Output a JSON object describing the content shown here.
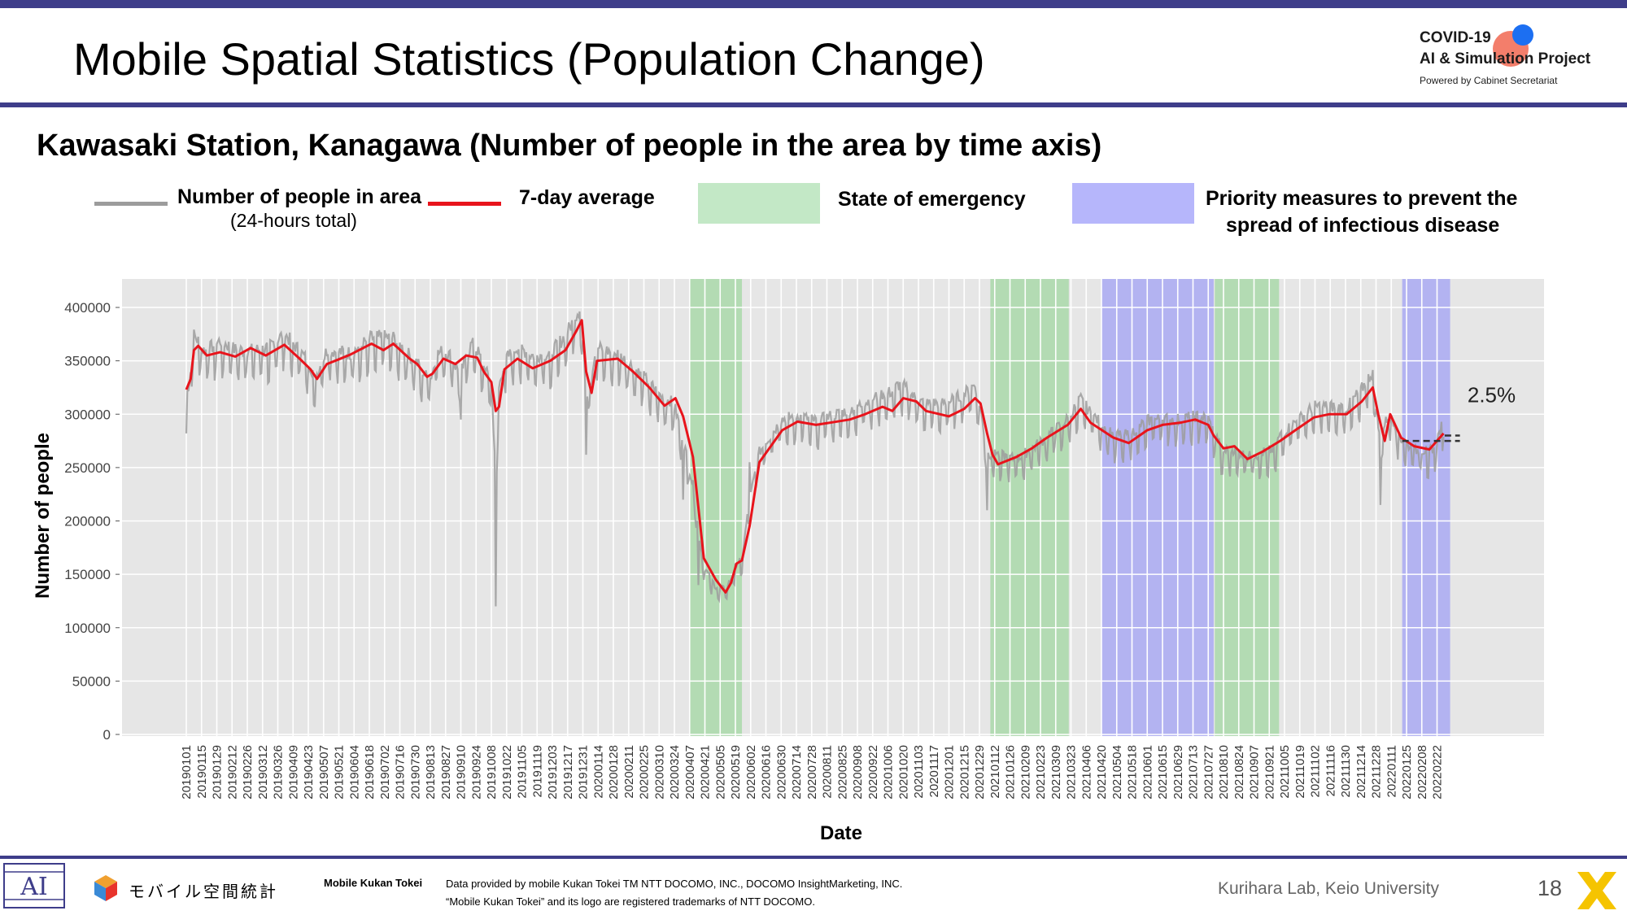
{
  "header": {
    "title": "Mobile Spatial Statistics (Population Change)",
    "logo": {
      "line1": "COVID-19",
      "line2": "AI & Simulation Project",
      "line3": "Powered by Cabinet Secretariat"
    }
  },
  "colors": {
    "band": "#3e3d8a",
    "raw_series": "#9c9c9c",
    "avg_series": "#e8141c",
    "emergency": "#a9d8a9",
    "priority": "#a9a9f2",
    "plot_background": "#e6e6e6"
  },
  "legend": {
    "raw_label": "Number of people in area",
    "raw_sublabel": "(24-hours total)",
    "avg_label": "7-day average",
    "emergency_label": "State of emergency",
    "priority_label_line1": "Priority measures to prevent the",
    "priority_label_line2": "spread of infectious disease"
  },
  "chart_data": {
    "type": "line",
    "title": "Kawasaki Station, Kanagawa (Number of people in the area by time axis)",
    "xlabel": "Date",
    "ylabel": "Number of people",
    "ylim": [
      0,
      420000
    ],
    "yticks": [
      "0",
      "50000",
      "100000",
      "150000",
      "200000",
      "250000",
      "300000",
      "350000",
      "400000"
    ],
    "x_tick_labels": [
      "20190101",
      "20190115",
      "20190129",
      "20190212",
      "20190226",
      "20190312",
      "20190326",
      "20190409",
      "20190423",
      "20190507",
      "20190521",
      "20190604",
      "20190618",
      "20190702",
      "20190716",
      "20190730",
      "20190813",
      "20190827",
      "20190910",
      "20190924",
      "20191008",
      "20191022",
      "20191105",
      "20191119",
      "20191203",
      "20191217",
      "20191231",
      "20200114",
      "20200128",
      "20200211",
      "20200225",
      "20200310",
      "20200324",
      "20200407",
      "20200421",
      "20200505",
      "20200519",
      "20200602",
      "20200616",
      "20200630",
      "20200714",
      "20200728",
      "20200811",
      "20200825",
      "20200908",
      "20200922",
      "20201006",
      "20201020",
      "20201103",
      "20201117",
      "20201201",
      "20201215",
      "20201229",
      "20210112",
      "20210126",
      "20210209",
      "20210223",
      "20210309",
      "20210323",
      "20210406",
      "20210420",
      "20210504",
      "20210518",
      "20210601",
      "20210615",
      "20210629",
      "20210713",
      "20210727",
      "20210810",
      "20210824",
      "20210907",
      "20210921",
      "20211005",
      "20211019",
      "20211102",
      "20211116",
      "20211130",
      "20211214",
      "20211228",
      "20220111",
      "20220125",
      "20220208",
      "20220222"
    ],
    "grid": true,
    "series": [
      {
        "name": "Number of people in area",
        "style": "raw-daily",
        "anchors": [
          [
            "20190101",
            282000
          ],
          [
            "20190104",
            320000
          ],
          [
            "20190108",
            380000
          ],
          [
            "20190115",
            340000
          ],
          [
            "20190201",
            370000
          ],
          [
            "20190301",
            335000
          ],
          [
            "20190401",
            375000
          ],
          [
            "20190420",
            345000
          ],
          [
            "20190429",
            320000
          ],
          [
            "20190510",
            365000
          ],
          [
            "20190601",
            340000
          ],
          [
            "20190701",
            375000
          ],
          [
            "20190801",
            330000
          ],
          [
            "20190813",
            310000
          ],
          [
            "20190820",
            360000
          ],
          [
            "20190901",
            345000
          ],
          [
            "20190910",
            295000
          ],
          [
            "20190920",
            370000
          ],
          [
            "20191008",
            310000
          ],
          [
            "20191012",
            120000
          ],
          [
            "20191015",
            340000
          ],
          [
            "20191101",
            365000
          ],
          [
            "20191201",
            350000
          ],
          [
            "20191220",
            390000
          ],
          [
            "20191228",
            408000
          ],
          [
            "20200103",
            262000
          ],
          [
            "20200110",
            370000
          ],
          [
            "20200201",
            345000
          ],
          [
            "20200301",
            320000
          ],
          [
            "20200320",
            300000
          ],
          [
            "20200401",
            220000
          ],
          [
            "20200415",
            140000
          ],
          [
            "20200501",
            118000
          ],
          [
            "20200515",
            145000
          ],
          [
            "20200525",
            160000
          ],
          [
            "20200601",
            255000
          ],
          [
            "20200701",
            300000
          ],
          [
            "20200801",
            285000
          ],
          [
            "20200901",
            305000
          ],
          [
            "20201001",
            325000
          ],
          [
            "20201015",
            345000
          ],
          [
            "20201101",
            300000
          ],
          [
            "20201201",
            320000
          ],
          [
            "20201225",
            335000
          ],
          [
            "20210105",
            210000
          ],
          [
            "20210112",
            270000
          ],
          [
            "20210201",
            240000
          ],
          [
            "20210301",
            265000
          ],
          [
            "20210320",
            290000
          ],
          [
            "20210401",
            315000
          ],
          [
            "20210501",
            270000
          ],
          [
            "20210601",
            295000
          ],
          [
            "20210701",
            285000
          ],
          [
            "20210727",
            290000
          ],
          [
            "20210810",
            245000
          ],
          [
            "20210901",
            250000
          ],
          [
            "20210925",
            245000
          ],
          [
            "20211001",
            275000
          ],
          [
            "20211101",
            310000
          ],
          [
            "20211201",
            300000
          ],
          [
            "20211225",
            350000
          ],
          [
            "20220101",
            215000
          ],
          [
            "20220105",
            305000
          ],
          [
            "20220120",
            260000
          ],
          [
            "20220201",
            245000
          ],
          [
            "20220220",
            250000
          ],
          [
            "20220228",
            300000
          ]
        ]
      },
      {
        "name": "7-day average",
        "style": "smoothed",
        "points": [
          [
            "20190101",
            323000
          ],
          [
            "20190105",
            333000
          ],
          [
            "20190108",
            360000
          ],
          [
            "20190112",
            364000
          ],
          [
            "20190120",
            355000
          ],
          [
            "20190201",
            358000
          ],
          [
            "20190215",
            354000
          ],
          [
            "20190301",
            362000
          ],
          [
            "20190315",
            355000
          ],
          [
            "20190401",
            365000
          ],
          [
            "20190415",
            352000
          ],
          [
            "20190425",
            342000
          ],
          [
            "20190501",
            333000
          ],
          [
            "20190510",
            347000
          ],
          [
            "20190520",
            351000
          ],
          [
            "20190601",
            356000
          ],
          [
            "20190620",
            366000
          ],
          [
            "20190701",
            360000
          ],
          [
            "20190710",
            366000
          ],
          [
            "20190725",
            352000
          ],
          [
            "20190801",
            347000
          ],
          [
            "20190810",
            335000
          ],
          [
            "20190815",
            338000
          ],
          [
            "20190825",
            352000
          ],
          [
            "20190905",
            347000
          ],
          [
            "20190915",
            355000
          ],
          [
            "20190925",
            353000
          ],
          [
            "20191001",
            340000
          ],
          [
            "20191008",
            330000
          ],
          [
            "20191012",
            303000
          ],
          [
            "20191015",
            307000
          ],
          [
            "20191020",
            342000
          ],
          [
            "20191101",
            352000
          ],
          [
            "20191115",
            343000
          ],
          [
            "20191201",
            350000
          ],
          [
            "20191215",
            360000
          ],
          [
            "20191225",
            378000
          ],
          [
            "20191230",
            388000
          ],
          [
            "20200103",
            340000
          ],
          [
            "20200108",
            320000
          ],
          [
            "20200113",
            350000
          ],
          [
            "20200201",
            352000
          ],
          [
            "20200215",
            340000
          ],
          [
            "20200301",
            325000
          ],
          [
            "20200315",
            308000
          ],
          [
            "20200325",
            315000
          ],
          [
            "20200401",
            298000
          ],
          [
            "20200410",
            260000
          ],
          [
            "20200420",
            165000
          ],
          [
            "20200501",
            145000
          ],
          [
            "20200510",
            133000
          ],
          [
            "20200515",
            142000
          ],
          [
            "20200520",
            160000
          ],
          [
            "20200525",
            163000
          ],
          [
            "20200601",
            195000
          ],
          [
            "20200610",
            255000
          ],
          [
            "20200701",
            285000
          ],
          [
            "20200715",
            293000
          ],
          [
            "20200801",
            290000
          ],
          [
            "20200901",
            295000
          ],
          [
            "20200915",
            300000
          ],
          [
            "20201001",
            307000
          ],
          [
            "20201010",
            303000
          ],
          [
            "20201020",
            315000
          ],
          [
            "20201101",
            312000
          ],
          [
            "20201110",
            303000
          ],
          [
            "20201201",
            298000
          ],
          [
            "20201215",
            305000
          ],
          [
            "20201225",
            315000
          ],
          [
            "20201230",
            310000
          ],
          [
            "20210105",
            282000
          ],
          [
            "20210110",
            262000
          ],
          [
            "20210115",
            253000
          ],
          [
            "20210201",
            260000
          ],
          [
            "20210215",
            268000
          ],
          [
            "20210301",
            278000
          ],
          [
            "20210320",
            290000
          ],
          [
            "20210401",
            305000
          ],
          [
            "20210410",
            292000
          ],
          [
            "20210501",
            278000
          ],
          [
            "20210515",
            273000
          ],
          [
            "20210601",
            285000
          ],
          [
            "20210615",
            290000
          ],
          [
            "20210701",
            292000
          ],
          [
            "20210715",
            295000
          ],
          [
            "20210727",
            290000
          ],
          [
            "20210801",
            280000
          ],
          [
            "20210810",
            268000
          ],
          [
            "20210820",
            270000
          ],
          [
            "20210901",
            258000
          ],
          [
            "20210915",
            265000
          ],
          [
            "20211001",
            275000
          ],
          [
            "20211015",
            285000
          ],
          [
            "20211101",
            297000
          ],
          [
            "20211115",
            300000
          ],
          [
            "20211201",
            300000
          ],
          [
            "20211215",
            312000
          ],
          [
            "20211225",
            325000
          ],
          [
            "20211230",
            300000
          ],
          [
            "20220105",
            275000
          ],
          [
            "20220110",
            300000
          ],
          [
            "20220120",
            278000
          ],
          [
            "20220201",
            270000
          ],
          [
            "20220215",
            267000
          ],
          [
            "20220228",
            282000
          ]
        ]
      }
    ],
    "shaded_periods": [
      {
        "type": "state-of-emergency",
        "start": "20200407",
        "end": "20200525"
      },
      {
        "type": "state-of-emergency",
        "start": "20210108",
        "end": "20210321"
      },
      {
        "type": "priority-measures",
        "start": "20210420",
        "end": "20210801"
      },
      {
        "type": "state-of-emergency",
        "start": "20210802",
        "end": "20210930"
      },
      {
        "type": "priority-measures",
        "start": "20220121",
        "end": "20220306"
      }
    ],
    "annotations": [
      {
        "text": "2.5%",
        "x": "20220301",
        "y": 315000
      }
    ],
    "reference_lines": [
      {
        "x_start": "20220121",
        "x_end": "20220315",
        "y": 275000,
        "style": "dashed"
      },
      {
        "x_start": "20220301",
        "x_end": "20220315",
        "y": 280000,
        "style": "dashed"
      }
    ]
  },
  "footer": {
    "brand_jp": "モバイル空間統計",
    "brand_en": "Mobile Kukan Tokei",
    "credit1": "Data provided by mobile Kukan Tokei TM NTT DOCOMO, INC., DOCOMO InsightMarketing, INC.",
    "credit2": "“Mobile Kukan Tokei” and its logo are registered trademarks of NTT DOCOMO.",
    "lab": "Kurihara Lab, Keio University",
    "page": "18"
  }
}
